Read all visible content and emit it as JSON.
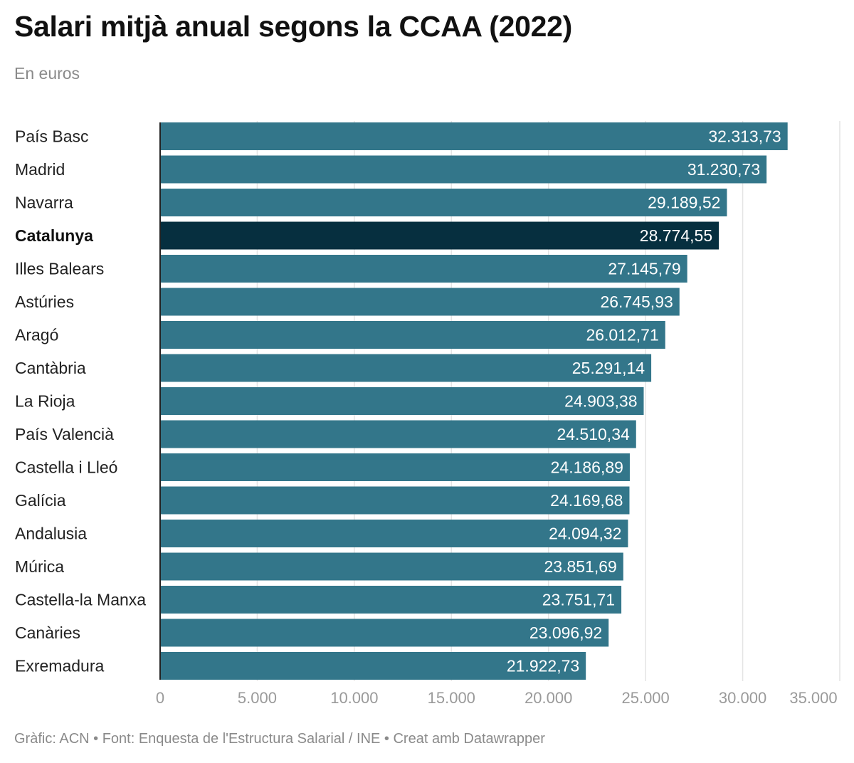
{
  "title": "Salari mitjà anual segons la CCAA (2022)",
  "subtitle": "En euros",
  "footer": "Gràfic: ACN • Font: Enquesta de l'Estructura Salarial / INE • Creat amb Datawrapper",
  "colors": {
    "bar": "#33768a",
    "highlight": "#062f3f",
    "grid": "#e4e4e4",
    "axis": "#222222"
  },
  "chart_data": {
    "type": "bar",
    "orientation": "horizontal",
    "title": "Salari mitjà anual segons la CCAA (2022)",
    "subtitle": "En euros",
    "xlabel": "",
    "ylabel": "",
    "xlim": [
      0,
      35000
    ],
    "grid": true,
    "highlight": "Catalunya",
    "categories": [
      "País Basc",
      "Madrid",
      "Navarra",
      "Catalunya",
      "Illes Balears",
      "Astúries",
      "Aragó",
      "Cantàbria",
      "La Rioja",
      "País Valencià",
      "Castella i Lleó",
      "Galícia",
      "Andalusia",
      "Múrica",
      "Castella-la Manxa",
      "Canàries",
      "Exremadura"
    ],
    "values": [
      32313.73,
      31230.73,
      29189.52,
      28774.55,
      27145.79,
      26745.93,
      26012.71,
      25291.14,
      24903.38,
      24510.34,
      24186.89,
      24169.68,
      24094.32,
      23851.69,
      23751.71,
      23096.92,
      21922.73
    ],
    "value_labels": [
      "32.313,73",
      "31.230,73",
      "29.189,52",
      "28.774,55",
      "27.145,79",
      "26.745,93",
      "26.012,71",
      "25.291,14",
      "24.903,38",
      "24.510,34",
      "24.186,89",
      "24.169,68",
      "24.094,32",
      "23.851,69",
      "23.751,71",
      "23.096,92",
      "21.922,73"
    ],
    "ticks": [
      0,
      5000,
      10000,
      15000,
      20000,
      25000,
      30000,
      35000
    ],
    "tick_labels": [
      "0",
      "5.000",
      "10.000",
      "15.000",
      "20.000",
      "25.000",
      "30.000",
      "35.000"
    ]
  }
}
